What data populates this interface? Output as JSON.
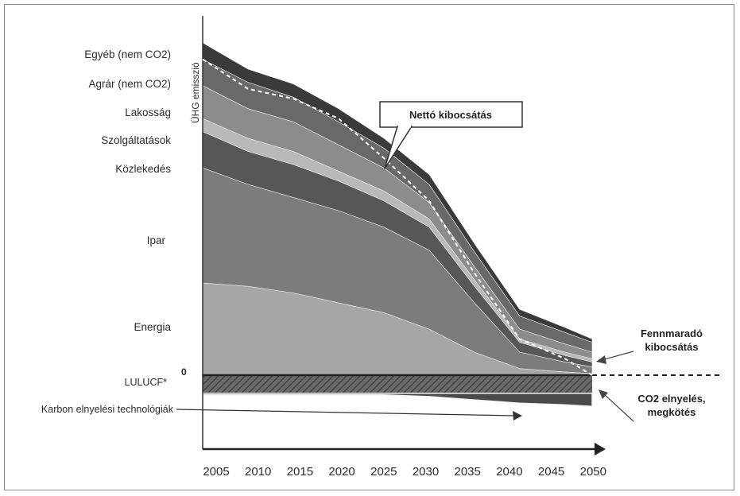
{
  "chart_data": {
    "type": "area",
    "title": "",
    "ylabel": "ÜHG emisszió",
    "xlabel": "",
    "x": [
      2005,
      2010,
      2015,
      2020,
      2025,
      2030,
      2035,
      2040,
      2045,
      2048
    ],
    "x_ticks": [
      "2005",
      "2010",
      "2015",
      "2020",
      "2025",
      "2030",
      "2035",
      "2040",
      "2045",
      "2050"
    ],
    "ylim": [
      -12,
      100
    ],
    "grid": false,
    "zero_label": "0",
    "series": [
      {
        "name": "Energia",
        "values": [
          28,
          27,
          25,
          22,
          19,
          14,
          7,
          2,
          1,
          0.5
        ]
      },
      {
        "name": "Ipar",
        "values": [
          35,
          31,
          29,
          28,
          26,
          24,
          15,
          5,
          3,
          2
        ]
      },
      {
        "name": "Közlekedés",
        "values": [
          11,
          10,
          10,
          9,
          8,
          7,
          5,
          3,
          2,
          1.5
        ]
      },
      {
        "name": "Szolgáltatások",
        "values": [
          4,
          4,
          4,
          3,
          3,
          2.5,
          2,
          1,
          1,
          1
        ]
      },
      {
        "name": "Lakosság",
        "values": [
          10,
          9,
          9,
          8,
          7,
          5,
          4,
          3,
          2.5,
          2
        ]
      },
      {
        "name": "Agrár (nem CO2)",
        "values": [
          8,
          8,
          7.5,
          7,
          6,
          5.5,
          4.5,
          4,
          3.5,
          3
        ]
      },
      {
        "name": "Egyéb (nem CO2)",
        "values": [
          5,
          4,
          4,
          4,
          3,
          3,
          2.5,
          2,
          1.5,
          1
        ]
      }
    ],
    "negative_series": [
      {
        "name": "LULUCF*",
        "values": [
          -5.5,
          -5.5,
          -5.5,
          -5.5,
          -5.5,
          -5.5,
          -5.5,
          -5.5,
          -5.5,
          -5.5
        ]
      },
      {
        "name": "Karbon elnyelési technológiák",
        "values": [
          -0.5,
          -0.5,
          -0.5,
          -0.5,
          -0.5,
          -1,
          -2,
          -3,
          -3.5,
          -4
        ]
      }
    ],
    "net_emission": {
      "name": "Nettó kibocsátás",
      "values": [
        96,
        87,
        84,
        78,
        66,
        53,
        31,
        11,
        5,
        0
      ]
    },
    "annotations": {
      "net_label": "Nettó kibocsátás",
      "remaining_line1": "Fennmaradó",
      "remaining_line2": "kibocsátás",
      "absorb_line1": "CO2 elnyelés,",
      "absorb_line2": "megkötés"
    },
    "colors": [
      "#a6a6a6",
      "#7c7c7c",
      "#575757",
      "#b9b9b9",
      "#8c8c8c",
      "#696969",
      "#3a3a3a"
    ]
  }
}
